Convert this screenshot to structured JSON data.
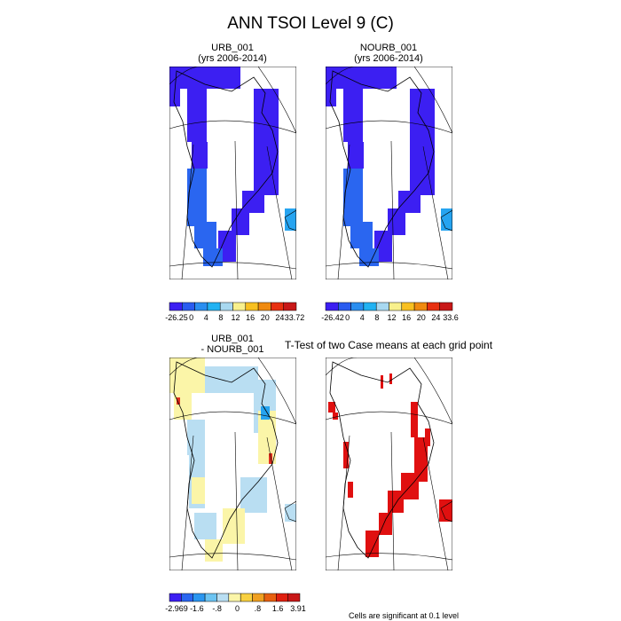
{
  "title": "ANN TSOI Level 9 (C)",
  "panels": [
    {
      "title": "URB_001",
      "subtitle": "(yrs 2006-2014)",
      "colorbar_labels": [
        "-26.25",
        "0",
        "4",
        "8",
        "12",
        "16",
        "20",
        "24",
        "33.72"
      ]
    },
    {
      "title": "NOURB_001",
      "subtitle": "(yrs 2006-2014)",
      "colorbar_labels": [
        "-26.42",
        "0",
        "4",
        "8",
        "12",
        "16",
        "20",
        "24",
        "33.6"
      ]
    },
    {
      "title": "URB_001",
      "subtitle": "- NOURB_001",
      "colorbar_labels": [
        "-2.969",
        "-1.6",
        "-.8",
        "0",
        ".8",
        "1.6",
        "3.91"
      ]
    },
    {
      "title": "T-Test of two Case means at each grid point",
      "footnote": "Cells are significant at 0.1 level"
    }
  ]
}
